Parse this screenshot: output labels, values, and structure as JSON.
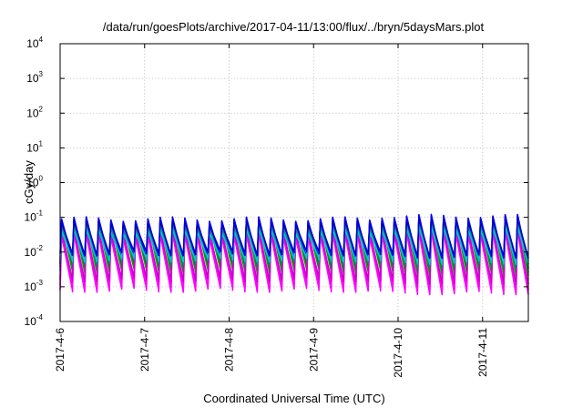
{
  "chart_data": {
    "type": "line",
    "title": "/data/run/goesPlots/archive/2017-04-11/13:00/flux/../bryn/5daysMars.plot",
    "xlabel": "Coordinated Universal Time (UTC)",
    "ylabel": "cGy/day",
    "yscale": "log",
    "ylim": [
      0.0001,
      10000
    ],
    "xlim": [
      "2017-04-06T00:00",
      "2017-04-11T13:00"
    ],
    "grid": true,
    "legend": "none",
    "x_ticks": [
      "2017-4-6",
      "2017-4-7",
      "2017-4-8",
      "2017-4-9",
      "2017-4-10",
      "2017-4-11"
    ],
    "y_ticks": [
      {
        "base": "10",
        "exp": "-4"
      },
      {
        "base": "10",
        "exp": "-3"
      },
      {
        "base": "10",
        "exp": "-2"
      },
      {
        "base": "10",
        "exp": "-1"
      },
      {
        "base": "10",
        "exp": "0"
      },
      {
        "base": "10",
        "exp": "1"
      },
      {
        "base": "10",
        "exp": "2"
      },
      {
        "base": "10",
        "exp": "3"
      },
      {
        "base": "10",
        "exp": "4"
      }
    ],
    "pattern": {
      "period_hours": 3.5,
      "description": "sawtooth: sharp rise at start of each period, slow decay until next rise"
    },
    "series": [
      {
        "color": "#ff0000",
        "peak": 0.085,
        "trough": 0.0045
      },
      {
        "color": "#8b1a1a",
        "peak": 0.08,
        "trough": 0.0035
      },
      {
        "color": "#00a000",
        "peak": 0.075,
        "trough": 0.0028
      },
      {
        "color": "#ff00ff",
        "peak": 0.03,
        "trough": 0.0008
      },
      {
        "color": "#ff00ff",
        "peak": 0.05,
        "trough": 0.0011
      },
      {
        "color": "#cc00cc",
        "peak": 0.04,
        "trough": 0.0016
      },
      {
        "color": "#0000ff",
        "peak": 0.09,
        "trough": 0.006
      },
      {
        "color": "#008b8b",
        "peak": 0.06,
        "trough": 0.005
      },
      {
        "color": "#00c8c8",
        "peak": 0.04,
        "trough": 0.006
      },
      {
        "color": "#0000cc",
        "peak": 0.07,
        "trough": 0.009
      }
    ]
  }
}
